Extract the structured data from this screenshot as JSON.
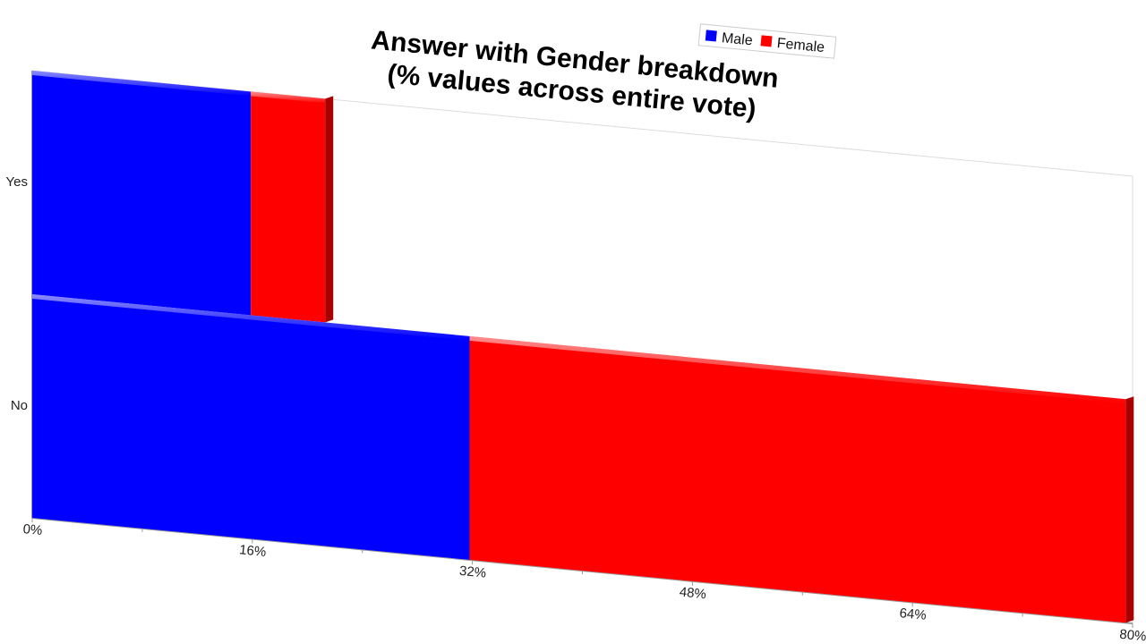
{
  "chart_data": {
    "type": "bar",
    "orientation": "horizontal",
    "stacked": true,
    "title": [
      "Answer with Gender breakdown",
      "(% values across entire vote)"
    ],
    "categories": [
      "Yes",
      "No"
    ],
    "series": [
      {
        "name": "Male",
        "color": "#0000ff",
        "values": [
          15.9,
          31.8
        ]
      },
      {
        "name": "Female",
        "color": "#ff0000",
        "values": [
          5.4,
          47.7
        ]
      }
    ],
    "x_ticks": [
      "0%",
      "16%",
      "32%",
      "48%",
      "64%",
      "80%"
    ],
    "xlim": [
      0,
      80
    ],
    "x_unit": "%",
    "legend_position": "top",
    "grid": false
  }
}
